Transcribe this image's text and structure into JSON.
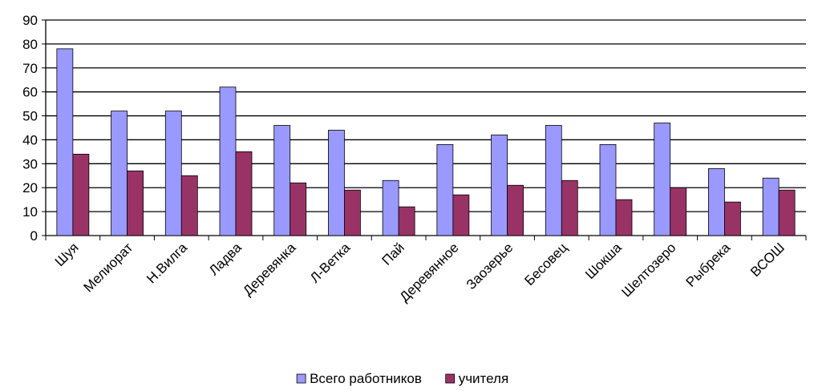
{
  "chart_data": {
    "type": "bar",
    "categories": [
      "Шуя",
      "Мелиорат",
      "Н.Вилга",
      "Ладва",
      "Деревянка",
      "Л-Ветка",
      "Пай",
      "Деревянное",
      "Заозерье",
      "Бесовец",
      "Шокша",
      "Шелтозеро",
      "Рыбрека",
      "ВСОШ"
    ],
    "series": [
      {
        "name": "Всего работников",
        "color": "#9999ff",
        "values": [
          78,
          52,
          52,
          62,
          46,
          44,
          23,
          38,
          42,
          46,
          38,
          47,
          28,
          24
        ]
      },
      {
        "name": "учителя",
        "color": "#993366",
        "values": [
          34,
          27,
          25,
          35,
          22,
          19,
          12,
          17,
          21,
          23,
          15,
          20,
          14,
          19
        ]
      }
    ],
    "ylim": [
      0,
      90
    ],
    "yticks": [
      0,
      10,
      20,
      30,
      40,
      50,
      60,
      70,
      80,
      90
    ],
    "grid": true,
    "legend": "bottom"
  }
}
